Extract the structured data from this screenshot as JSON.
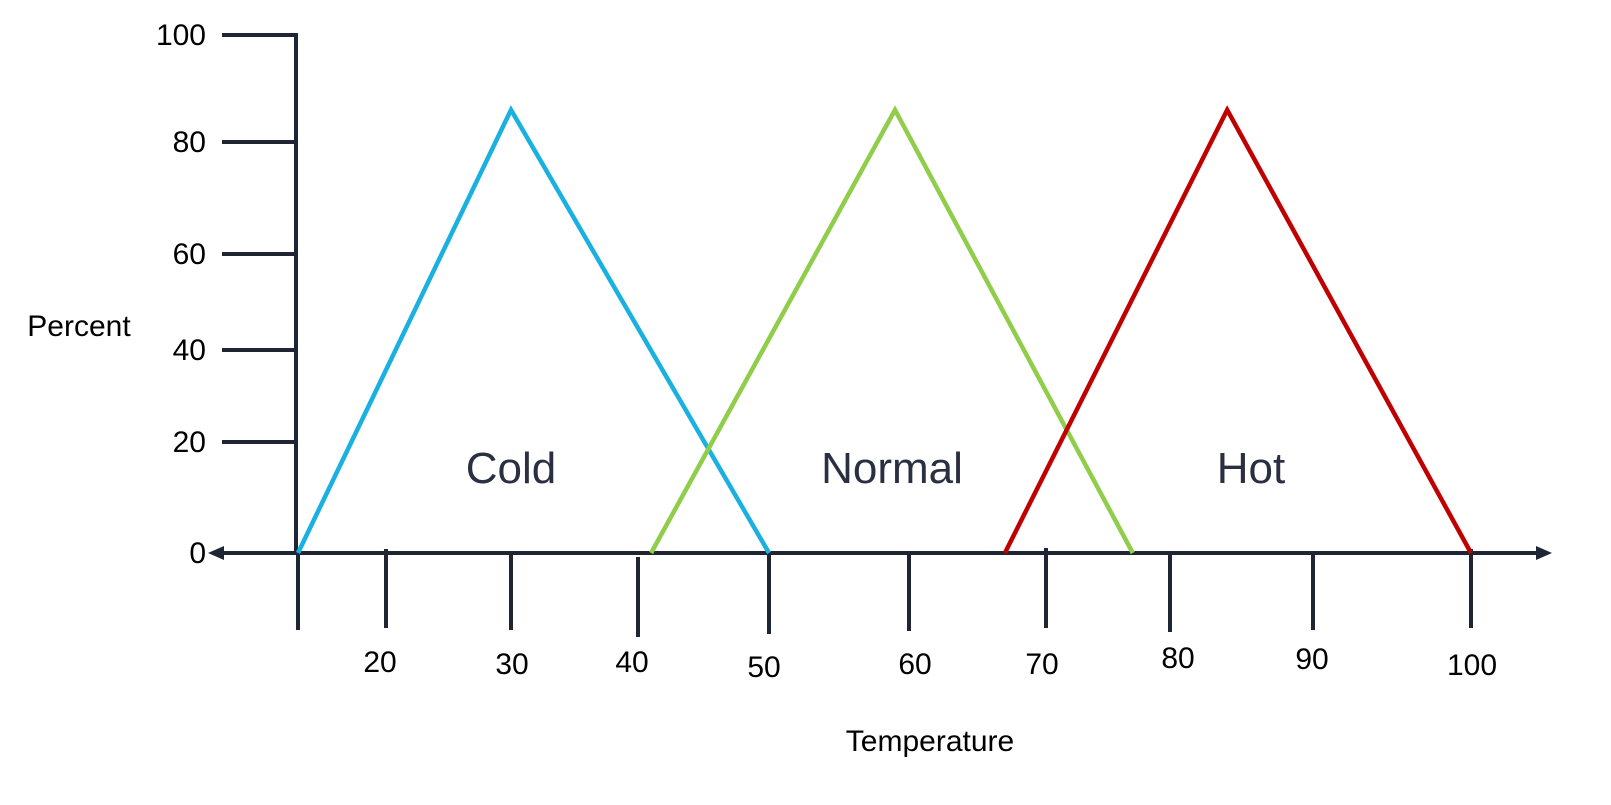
{
  "chart_data": {
    "type": "line",
    "xlabel": "Temperature",
    "ylabel": "Percent",
    "x_ticks": [
      {
        "value": 10,
        "label": ""
      },
      {
        "value": 20,
        "label": "20"
      },
      {
        "value": 30,
        "label": "30"
      },
      {
        "value": 40,
        "label": "40"
      },
      {
        "value": 50,
        "label": "50"
      },
      {
        "value": 60,
        "label": "60"
      },
      {
        "value": 70,
        "label": "70"
      },
      {
        "value": 80,
        "label": "80"
      },
      {
        "value": 90,
        "label": "90"
      },
      {
        "value": 100,
        "label": "100"
      }
    ],
    "y_ticks": [
      {
        "value": 0,
        "label": "0"
      },
      {
        "value": 20,
        "label": "20"
      },
      {
        "value": 40,
        "label": "40"
      },
      {
        "value": 60,
        "label": "60"
      },
      {
        "value": 80,
        "label": "80"
      },
      {
        "value": 100,
        "label": "100"
      }
    ],
    "xlim": [
      10,
      100
    ],
    "ylim": [
      0,
      100
    ],
    "grid": false,
    "series": [
      {
        "name": "Cold",
        "color": "#1ab0e0",
        "x": [
          10,
          30,
          50
        ],
        "y": [
          0,
          86,
          0
        ]
      },
      {
        "name": "Normal",
        "color": "#8fcd4a",
        "x": [
          41,
          59,
          77
        ],
        "y": [
          0,
          86,
          0
        ]
      },
      {
        "name": "Hot",
        "color": "#c00000",
        "x": [
          67,
          84,
          100
        ],
        "y": [
          0,
          86,
          0
        ]
      }
    ]
  }
}
